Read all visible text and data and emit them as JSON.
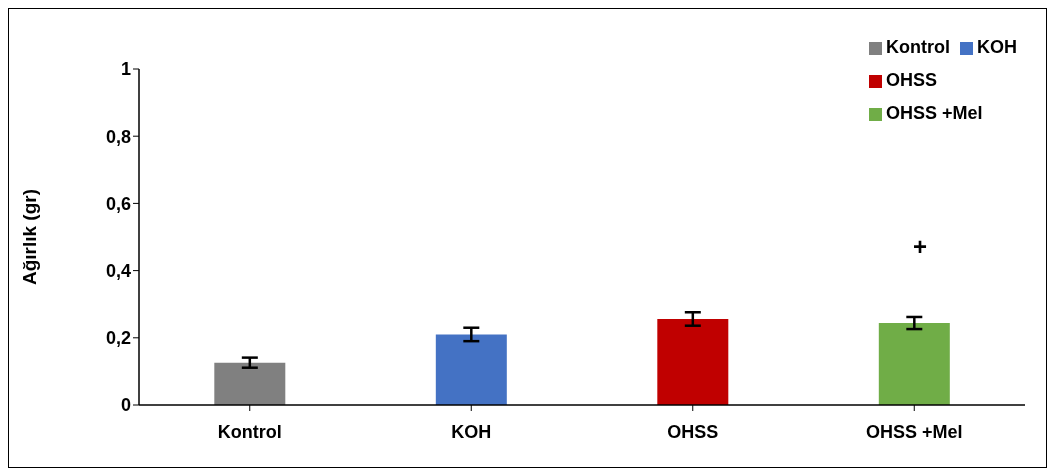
{
  "chart_data": {
    "type": "bar",
    "ylabel": "Ağırlık (gr)",
    "stacked": true,
    "categories": [
      "Kontrol",
      "KOH",
      "OHSS",
      "OHSS +Mel"
    ],
    "series": [
      {
        "name": "Kontrol",
        "color": "#808080",
        "values": [
          0.126,
          null,
          null,
          null
        ],
        "errors": [
          0.015,
          null,
          null,
          null
        ]
      },
      {
        "name": "KOH",
        "color": "#4472c4",
        "values": [
          null,
          0.21,
          null,
          null
        ],
        "errors": [
          null,
          0.02,
          null,
          null
        ]
      },
      {
        "name": "OHSS",
        "color": "#c00000",
        "values": [
          null,
          null,
          0.256,
          null
        ],
        "errors": [
          null,
          null,
          0.02,
          null
        ]
      },
      {
        "name": "OHSS +Mel",
        "color": "#70ad47",
        "values": [
          null,
          null,
          null,
          0.244
        ],
        "errors": [
          null,
          null,
          null,
          0.018
        ]
      }
    ],
    "ylim": [
      0,
      1
    ],
    "yticks": [
      0,
      {
        "value": 0.2,
        "label": "0,2"
      },
      {
        "value": 0.4,
        "label": "0,4"
      },
      {
        "value": 0.6,
        "label": "0,6"
      },
      {
        "value": 0.8,
        "label": "0,8"
      },
      1
    ],
    "legend": "top right",
    "annotations": [
      "+"
    ]
  }
}
